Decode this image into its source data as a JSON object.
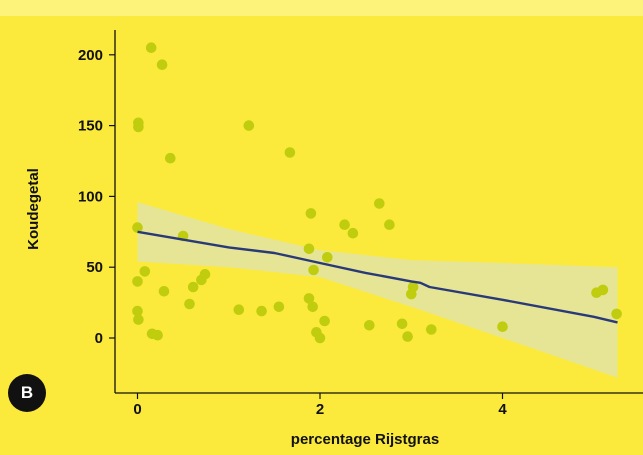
{
  "panel_label": "B",
  "colors": {
    "background": "#fbea3c",
    "points": "#bfcd0e",
    "ci_band": "#e6e596",
    "trend_line": "#2a3a78",
    "axis": "#111111"
  },
  "chart_data": {
    "type": "scatter",
    "title": "",
    "xlabel": "percentage Rijstgras",
    "ylabel": "Koudegetal",
    "xlim": [
      -0.35,
      5.4
    ],
    "ylim": [
      -38,
      222
    ],
    "x_ticks": [
      0,
      2,
      4
    ],
    "y_ticks": [
      0,
      50,
      100,
      150,
      200
    ],
    "x_tick_labels": [
      "0",
      "2",
      "4"
    ],
    "y_tick_labels": [
      "0",
      "50",
      "100",
      "150",
      "200"
    ],
    "grid": false,
    "legend": "none",
    "points": [
      {
        "x": 0.15,
        "y": 205
      },
      {
        "x": 0.27,
        "y": 193
      },
      {
        "x": 0.01,
        "y": 152
      },
      {
        "x": 0.01,
        "y": 149
      },
      {
        "x": 0.36,
        "y": 127
      },
      {
        "x": 1.22,
        "y": 150
      },
      {
        "x": 1.67,
        "y": 131
      },
      {
        "x": 0.0,
        "y": 78
      },
      {
        "x": 0.5,
        "y": 72
      },
      {
        "x": 0.08,
        "y": 47
      },
      {
        "x": 0.0,
        "y": 40
      },
      {
        "x": 0.29,
        "y": 33
      },
      {
        "x": 0.0,
        "y": 19
      },
      {
        "x": 0.01,
        "y": 13
      },
      {
        "x": 0.16,
        "y": 3
      },
      {
        "x": 0.22,
        "y": 2
      },
      {
        "x": 0.57,
        "y": 24
      },
      {
        "x": 0.61,
        "y": 36
      },
      {
        "x": 0.7,
        "y": 41
      },
      {
        "x": 0.74,
        "y": 45
      },
      {
        "x": 1.11,
        "y": 20
      },
      {
        "x": 1.36,
        "y": 19
      },
      {
        "x": 1.55,
        "y": 22
      },
      {
        "x": 1.9,
        "y": 88
      },
      {
        "x": 1.88,
        "y": 63
      },
      {
        "x": 1.93,
        "y": 48
      },
      {
        "x": 1.88,
        "y": 28
      },
      {
        "x": 1.92,
        "y": 22
      },
      {
        "x": 1.96,
        "y": 4
      },
      {
        "x": 2.0,
        "y": 0
      },
      {
        "x": 2.05,
        "y": 12
      },
      {
        "x": 2.08,
        "y": 57
      },
      {
        "x": 2.27,
        "y": 80
      },
      {
        "x": 2.36,
        "y": 74
      },
      {
        "x": 2.54,
        "y": 9
      },
      {
        "x": 2.65,
        "y": 95
      },
      {
        "x": 2.76,
        "y": 80
      },
      {
        "x": 2.9,
        "y": 10
      },
      {
        "x": 2.96,
        "y": 1
      },
      {
        "x": 3.0,
        "y": 31
      },
      {
        "x": 3.02,
        "y": 36
      },
      {
        "x": 3.22,
        "y": 6
      },
      {
        "x": 4.0,
        "y": 8
      },
      {
        "x": 5.03,
        "y": 32
      },
      {
        "x": 5.1,
        "y": 34
      },
      {
        "x": 5.25,
        "y": 17
      }
    ],
    "trend": {
      "type": "line",
      "x": [
        0.0,
        1.0,
        1.5,
        2.0,
        2.5,
        3.0,
        3.1,
        3.2,
        4.0,
        5.0,
        5.26
      ],
      "y": [
        75,
        64,
        60,
        53,
        46,
        40,
        39,
        36,
        27,
        15,
        11
      ]
    },
    "confidence_band": {
      "type": "area",
      "x": [
        0.0,
        1.0,
        2.0,
        3.0,
        4.0,
        5.26
      ],
      "upper": [
        96,
        77,
        62,
        55,
        53,
        50
      ],
      "lower": [
        54,
        50,
        43,
        22,
        0,
        -28
      ]
    }
  }
}
